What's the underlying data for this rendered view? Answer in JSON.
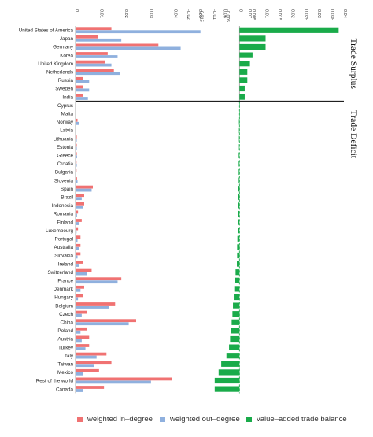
{
  "chart_data": {
    "type": "bar",
    "orientation": "horizontal",
    "legend_position": "bottom",
    "grid": false,
    "categories": [
      "United States of America",
      "Japan",
      "Germany",
      "Korea",
      "United Kingdom",
      "Netherlands",
      "Russia",
      "Sweden",
      "India",
      "Cyprus",
      "Malta",
      "Norway",
      "Latvia",
      "Lithuania",
      "Estonia",
      "Greece",
      "Croatia",
      "Bulgaria",
      "Slovenia",
      "Spain",
      "Brazil",
      "Indonesia",
      "Romania",
      "Finland",
      "Luxembourg",
      "Portugal",
      "Australia",
      "Slovakia",
      "Ireland",
      "Switzerland",
      "France",
      "Denmark",
      "Hungary",
      "Belgium",
      "Czech",
      "China",
      "Poland",
      "Austria",
      "Turkey",
      "Italy",
      "Taiwan",
      "Mexico",
      "Rest of the world",
      "Canada"
    ],
    "panels": [
      {
        "xlim": [
          0,
          0.07
        ],
        "xticks": [
          "0",
          "0.01",
          "0.02",
          "0.03",
          "0.04",
          "0.05",
          "0.06",
          "0.07"
        ],
        "series": [
          {
            "name": "weighted in–degree",
            "color": "#f07272",
            "values": [
              0.0145,
              0.009,
              0.0335,
              0.013,
              0.012,
              0.0155,
              0.003,
              0.003,
              0.003,
              0,
              0,
              0.0008,
              0,
              0.0005,
              0.0005,
              0.0005,
              0.0004,
              0.0004,
              0.0006,
              0.007,
              0.0035,
              0.0035,
              0.001,
              0.0025,
              0.001,
              0.002,
              0.002,
              0.002,
              0.003,
              0.0065,
              0.0185,
              0.0035,
              0.003,
              0.016,
              0.0045,
              0.0245,
              0.0045,
              0.0055,
              0.0055,
              0.0125,
              0.0145,
              0.0095,
              0.039,
              0.0115
            ]
          },
          {
            "name": "weighted out–degree",
            "color": "#8fb0de",
            "values": [
              0.0505,
              0.0185,
              0.0425,
              0.017,
              0.0145,
              0.018,
              0.0055,
              0.0055,
              0.005,
              0,
              0,
              0.0015,
              0,
              0.0005,
              0.0005,
              0.0006,
              0.0005,
              0.0003,
              0.0008,
              0.0065,
              0.0025,
              0.003,
              0.0006,
              0.0015,
              0.0004,
              0.0008,
              0.0015,
              0.0008,
              0.0015,
              0.0045,
              0.017,
              0.002,
              0.001,
              0.0135,
              0.0025,
              0.0215,
              0.002,
              0.0025,
              0.004,
              0.0085,
              0.0075,
              0.003,
              0.0305,
              0.003
            ]
          }
        ]
      },
      {
        "xlim": [
          -0.02,
          0.04
        ],
        "xticks": [
          "-0.02",
          "-0.015",
          "-0.01",
          "-0.005",
          "0",
          "0.005",
          "0.01",
          "0.015",
          "0.02",
          "0.025",
          "0.03",
          "0.035",
          "0.04"
        ],
        "series": [
          {
            "name": "value–added trade balance",
            "color": "#1aab4a",
            "values": [
              0.038,
              0.01,
              0.01,
              0.005,
              0.004,
              0.003,
              0.003,
              0.002,
              0.002,
              -0.0001,
              -0.0001,
              -0.0002,
              -0.0002,
              -0.0002,
              -0.0002,
              -0.0003,
              -0.0003,
              -0.0003,
              -0.0003,
              -0.0005,
              -0.0005,
              -0.0006,
              -0.0006,
              -0.0007,
              -0.0007,
              -0.0008,
              -0.0009,
              -0.0009,
              -0.001,
              -0.0015,
              -0.0018,
              -0.002,
              -0.0022,
              -0.0025,
              -0.0027,
              -0.003,
              -0.0033,
              -0.0036,
              -0.004,
              -0.005,
              -0.007,
              -0.008,
              -0.0095,
              -0.0095
            ]
          }
        ]
      }
    ],
    "annotations": [
      "Trade Surplus",
      "Trade Deficit"
    ]
  }
}
